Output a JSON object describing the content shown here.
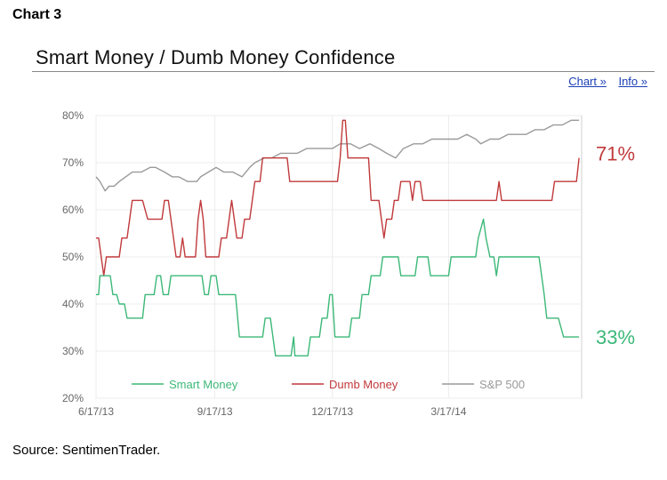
{
  "heading": "Chart 3",
  "source": "Source: SentimenTrader.",
  "links": {
    "chart": "Chart »",
    "info": "Info »"
  },
  "chart_data": {
    "type": "line",
    "title": "Smart Money / Dumb Money Confidence",
    "xlabel": "",
    "ylabel": "",
    "ylim": [
      20,
      80
    ],
    "y_ticks": [
      "20%",
      "30%",
      "40%",
      "50%",
      "60%",
      "70%",
      "80%"
    ],
    "x_ticks": [
      "6/17/13",
      "9/17/13",
      "12/17/13",
      "3/17/14"
    ],
    "x_tick_dates": [
      "2013-06-17",
      "2013-09-17",
      "2013-12-17",
      "2014-03-17"
    ],
    "xlim": [
      "2013-06-17",
      "2014-06-28"
    ],
    "grid": true,
    "legend_position": "bottom",
    "end_labels": {
      "dumb_money": "71%",
      "smart_money": "33%"
    },
    "series": [
      {
        "name": "Smart Money",
        "color": "#3cb878",
        "points": [
          [
            "2013-06-17",
            42
          ],
          [
            "2013-06-19",
            42
          ],
          [
            "2013-06-20",
            46
          ],
          [
            "2013-06-28",
            46
          ],
          [
            "2013-06-30",
            42
          ],
          [
            "2013-07-03",
            42
          ],
          [
            "2013-07-05",
            40
          ],
          [
            "2013-07-09",
            40
          ],
          [
            "2013-07-11",
            37
          ],
          [
            "2013-07-23",
            37
          ],
          [
            "2013-07-25",
            42
          ],
          [
            "2013-08-01",
            42
          ],
          [
            "2013-08-03",
            46
          ],
          [
            "2013-08-06",
            46
          ],
          [
            "2013-08-08",
            42
          ],
          [
            "2013-08-12",
            42
          ],
          [
            "2013-08-14",
            46
          ],
          [
            "2013-09-07",
            46
          ],
          [
            "2013-09-09",
            42
          ],
          [
            "2013-09-12",
            42
          ],
          [
            "2013-09-14",
            46
          ],
          [
            "2013-09-18",
            46
          ],
          [
            "2013-09-20",
            42
          ],
          [
            "2013-10-03",
            42
          ],
          [
            "2013-10-06",
            33
          ],
          [
            "2013-10-24",
            33
          ],
          [
            "2013-10-26",
            37
          ],
          [
            "2013-10-30",
            37
          ],
          [
            "2013-11-01",
            33
          ],
          [
            "2013-11-03",
            29
          ],
          [
            "2013-11-15",
            29
          ],
          [
            "2013-11-17",
            33
          ],
          [
            "2013-11-18",
            29
          ],
          [
            "2013-11-28",
            29
          ],
          [
            "2013-11-30",
            33
          ],
          [
            "2013-12-07",
            33
          ],
          [
            "2013-12-09",
            37
          ],
          [
            "2013-12-13",
            37
          ],
          [
            "2013-12-15",
            42
          ],
          [
            "2013-12-17",
            42
          ],
          [
            "2013-12-19",
            33
          ],
          [
            "2013-12-30",
            33
          ],
          [
            "2014-01-01",
            37
          ],
          [
            "2014-01-07",
            37
          ],
          [
            "2014-01-09",
            42
          ],
          [
            "2014-01-14",
            42
          ],
          [
            "2014-01-16",
            46
          ],
          [
            "2014-01-23",
            46
          ],
          [
            "2014-01-25",
            50
          ],
          [
            "2014-02-06",
            50
          ],
          [
            "2014-02-08",
            46
          ],
          [
            "2014-02-19",
            46
          ],
          [
            "2014-02-21",
            50
          ],
          [
            "2014-03-01",
            50
          ],
          [
            "2014-03-03",
            46
          ],
          [
            "2014-03-17",
            46
          ],
          [
            "2014-03-19",
            50
          ],
          [
            "2014-04-07",
            50
          ],
          [
            "2014-04-09",
            54
          ],
          [
            "2014-04-13",
            58
          ],
          [
            "2014-04-15",
            54
          ],
          [
            "2014-04-18",
            50
          ],
          [
            "2014-04-21",
            50
          ],
          [
            "2014-04-23",
            46
          ],
          [
            "2014-04-25",
            50
          ],
          [
            "2014-05-26",
            50
          ],
          [
            "2014-05-28",
            46
          ],
          [
            "2014-05-30",
            42
          ],
          [
            "2014-06-01",
            37
          ],
          [
            "2014-06-10",
            37
          ],
          [
            "2014-06-14",
            33
          ],
          [
            "2014-06-26",
            33
          ]
        ]
      },
      {
        "name": "Dumb Money",
        "color": "#c0393b",
        "points": [
          [
            "2013-06-17",
            54
          ],
          [
            "2013-06-19",
            54
          ],
          [
            "2013-06-21",
            50
          ],
          [
            "2013-06-23",
            46
          ],
          [
            "2013-06-25",
            50
          ],
          [
            "2013-07-05",
            50
          ],
          [
            "2013-07-07",
            54
          ],
          [
            "2013-07-11",
            54
          ],
          [
            "2013-07-13",
            58
          ],
          [
            "2013-07-15",
            62
          ],
          [
            "2013-07-23",
            62
          ],
          [
            "2013-07-27",
            58
          ],
          [
            "2013-08-07",
            58
          ],
          [
            "2013-08-09",
            62
          ],
          [
            "2013-08-12",
            62
          ],
          [
            "2013-08-14",
            58
          ],
          [
            "2013-08-16",
            54
          ],
          [
            "2013-08-18",
            50
          ],
          [
            "2013-08-21",
            50
          ],
          [
            "2013-08-23",
            54
          ],
          [
            "2013-08-25",
            50
          ],
          [
            "2013-09-02",
            50
          ],
          [
            "2013-09-04",
            58
          ],
          [
            "2013-09-06",
            62
          ],
          [
            "2013-09-08",
            58
          ],
          [
            "2013-09-10",
            50
          ],
          [
            "2013-09-20",
            50
          ],
          [
            "2013-09-22",
            54
          ],
          [
            "2013-09-26",
            54
          ],
          [
            "2013-09-28",
            58
          ],
          [
            "2013-09-30",
            62
          ],
          [
            "2013-10-02",
            58
          ],
          [
            "2013-10-04",
            54
          ],
          [
            "2013-10-08",
            54
          ],
          [
            "2013-10-10",
            58
          ],
          [
            "2013-10-14",
            58
          ],
          [
            "2013-10-16",
            62
          ],
          [
            "2013-10-18",
            66
          ],
          [
            "2013-10-22",
            66
          ],
          [
            "2013-10-24",
            71
          ],
          [
            "2013-11-12",
            71
          ],
          [
            "2013-11-14",
            66
          ],
          [
            "2013-12-21",
            66
          ],
          [
            "2013-12-23",
            71
          ],
          [
            "2013-12-25",
            79
          ],
          [
            "2013-12-27",
            79
          ],
          [
            "2013-12-29",
            71
          ],
          [
            "2014-01-14",
            71
          ],
          [
            "2014-01-16",
            62
          ],
          [
            "2014-01-22",
            62
          ],
          [
            "2014-01-24",
            58
          ],
          [
            "2014-01-26",
            54
          ],
          [
            "2014-01-28",
            58
          ],
          [
            "2014-02-01",
            58
          ],
          [
            "2014-02-03",
            62
          ],
          [
            "2014-02-06",
            62
          ],
          [
            "2014-02-08",
            66
          ],
          [
            "2014-02-15",
            66
          ],
          [
            "2014-02-17",
            62
          ],
          [
            "2014-02-19",
            66
          ],
          [
            "2014-02-23",
            66
          ],
          [
            "2014-02-25",
            62
          ],
          [
            "2014-04-23",
            62
          ],
          [
            "2014-04-25",
            66
          ],
          [
            "2014-04-27",
            62
          ],
          [
            "2014-06-05",
            62
          ],
          [
            "2014-06-07",
            66
          ],
          [
            "2014-06-24",
            66
          ],
          [
            "2014-06-26",
            71
          ]
        ]
      },
      {
        "name": "S&P 500",
        "color": "#9a9a9a",
        "points": [
          [
            "2013-06-17",
            67
          ],
          [
            "2013-06-20",
            66
          ],
          [
            "2013-06-24",
            64
          ],
          [
            "2013-06-27",
            65
          ],
          [
            "2013-07-01",
            65
          ],
          [
            "2013-07-05",
            66
          ],
          [
            "2013-07-10",
            67
          ],
          [
            "2013-07-15",
            68
          ],
          [
            "2013-07-22",
            68
          ],
          [
            "2013-07-29",
            69
          ],
          [
            "2013-08-02",
            69
          ],
          [
            "2013-08-09",
            68
          ],
          [
            "2013-08-15",
            67
          ],
          [
            "2013-08-20",
            67
          ],
          [
            "2013-08-27",
            66
          ],
          [
            "2013-09-03",
            66
          ],
          [
            "2013-09-06",
            67
          ],
          [
            "2013-09-12",
            68
          ],
          [
            "2013-09-18",
            69
          ],
          [
            "2013-09-24",
            68
          ],
          [
            "2013-10-01",
            68
          ],
          [
            "2013-10-08",
            67
          ],
          [
            "2013-10-14",
            69
          ],
          [
            "2013-10-18",
            70
          ],
          [
            "2013-10-25",
            71
          ],
          [
            "2013-10-31",
            71
          ],
          [
            "2013-11-07",
            72
          ],
          [
            "2013-11-14",
            72
          ],
          [
            "2013-11-20",
            72
          ],
          [
            "2013-11-27",
            73
          ],
          [
            "2013-12-04",
            73
          ],
          [
            "2013-12-10",
            73
          ],
          [
            "2013-12-17",
            73
          ],
          [
            "2013-12-23",
            74
          ],
          [
            "2013-12-31",
            74
          ],
          [
            "2014-01-07",
            73
          ],
          [
            "2014-01-15",
            74
          ],
          [
            "2014-01-22",
            73
          ],
          [
            "2014-01-28",
            72
          ],
          [
            "2014-02-04",
            71
          ],
          [
            "2014-02-10",
            73
          ],
          [
            "2014-02-18",
            74
          ],
          [
            "2014-02-25",
            74
          ],
          [
            "2014-03-04",
            75
          ],
          [
            "2014-03-11",
            75
          ],
          [
            "2014-03-17",
            75
          ],
          [
            "2014-03-24",
            75
          ],
          [
            "2014-03-31",
            76
          ],
          [
            "2014-04-07",
            75
          ],
          [
            "2014-04-11",
            74
          ],
          [
            "2014-04-18",
            75
          ],
          [
            "2014-04-25",
            75
          ],
          [
            "2014-05-02",
            76
          ],
          [
            "2014-05-09",
            76
          ],
          [
            "2014-05-16",
            76
          ],
          [
            "2014-05-23",
            77
          ],
          [
            "2014-05-30",
            77
          ],
          [
            "2014-06-06",
            78
          ],
          [
            "2014-06-13",
            78
          ],
          [
            "2014-06-20",
            79
          ],
          [
            "2014-06-26",
            79
          ]
        ]
      }
    ]
  }
}
